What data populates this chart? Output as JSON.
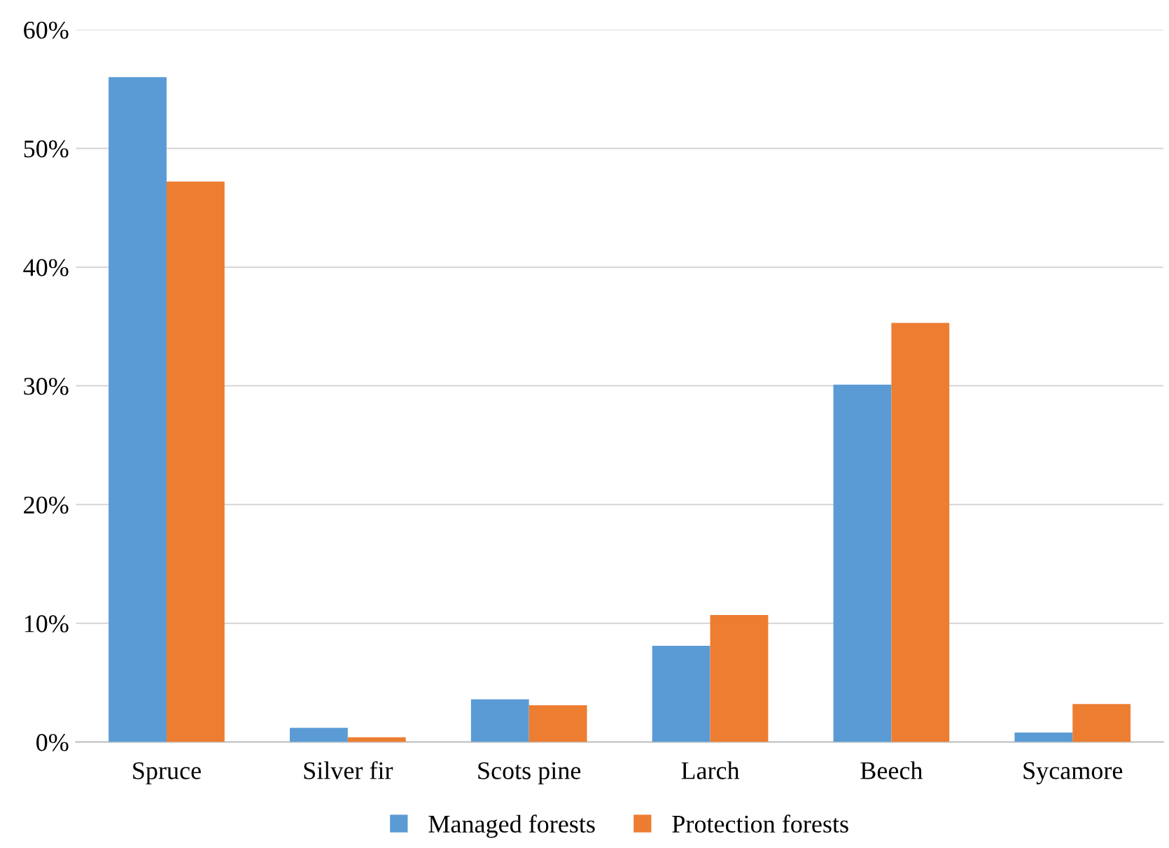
{
  "chart_data": {
    "type": "bar",
    "categories": [
      "Spruce",
      "Silver fir",
      "Scots pine",
      "Larch",
      "Beech",
      "Sycamore"
    ],
    "series": [
      {
        "name": "Managed forests",
        "color": "#5b9bd5",
        "values": [
          56,
          1.2,
          3.6,
          8.1,
          30.1,
          0.8
        ]
      },
      {
        "name": "Protection forests",
        "color": "#ed7d31",
        "values": [
          47.2,
          0.4,
          3.1,
          10.7,
          35.3,
          3.2
        ]
      }
    ],
    "ylim": [
      0,
      60
    ],
    "yticks": [
      {
        "value": 0,
        "label": "0%"
      },
      {
        "value": 10,
        "label": "10%"
      },
      {
        "value": 20,
        "label": "20%"
      },
      {
        "value": 30,
        "label": "30%"
      },
      {
        "value": 40,
        "label": "40%"
      },
      {
        "value": 50,
        "label": "50%"
      },
      {
        "value": 60,
        "label": "60%"
      }
    ],
    "grid": "y",
    "legend": "bottom"
  }
}
